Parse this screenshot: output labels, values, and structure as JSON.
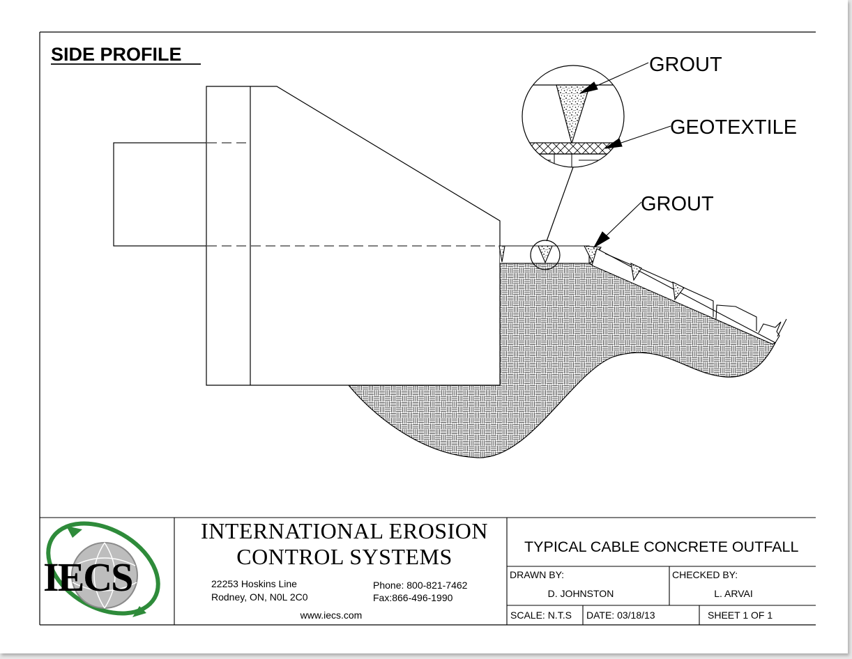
{
  "drawing": {
    "section_title": "SIDE PROFILE",
    "callouts": {
      "grout_top": "GROUT",
      "geotextile": "GEOTEXTILE",
      "grout_lower": "GROUT"
    }
  },
  "title_block": {
    "logo_text": "IECS",
    "company_line1": "INTERNATIONAL EROSION",
    "company_line2": "CONTROL SYSTEMS",
    "address_line1": "22253 Hoskins Line",
    "address_line2": "Rodney, ON, N0L 2C0",
    "phone": "Phone: 800-821-7462",
    "fax": "Fax:866-496-1990",
    "website": "www.iecs.com",
    "drawing_title": "TYPICAL CABLE CONCRETE OUTFALL",
    "drawn_by_label": "DRAWN BY:",
    "drawn_by": "D. JOHNSTON",
    "checked_by_label": "CHECKED BY:",
    "checked_by": "L. ARVAI",
    "scale": "SCALE: N.T.S",
    "date": "DATE:  03/18/13",
    "sheet": "SHEET 1 OF 1"
  },
  "colors": {
    "logo_green": "#2e8b3a",
    "logo_silver": "#9a9a9a",
    "line": "#000000"
  }
}
